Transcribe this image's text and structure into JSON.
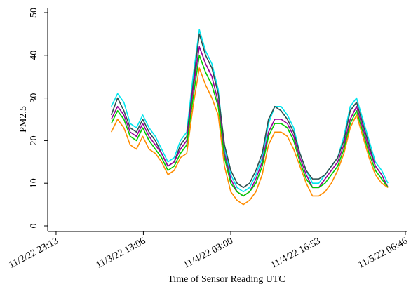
{
  "chart_data": {
    "type": "line",
    "y_label": "PM2.5",
    "x_label": "Time of Sensor Reading UTC",
    "xlim": [
      "2022-11-02T21:53",
      "2022-11-05T06:53"
    ],
    "xticks": [
      {
        "value": "2022-11-02T23:13",
        "label": "11/2/22 23:13"
      },
      {
        "value": "2022-11-03T13:06",
        "label": "11/3/22 13:06"
      },
      {
        "value": "2022-11-04T03:00",
        "label": "11/4/22 03:00"
      },
      {
        "value": "2022-11-04T16:53",
        "label": "11/4/22 16:53"
      },
      {
        "value": "2022-11-05T06:46",
        "label": "11/5/22 06:46"
      }
    ],
    "ylim": [
      0,
      50
    ],
    "yticks": [
      0,
      10,
      20,
      30,
      40,
      50
    ],
    "grid": false,
    "x": [
      "2022-11-03T08:00",
      "2022-11-03T09:00",
      "2022-11-03T10:00",
      "2022-11-03T11:00",
      "2022-11-03T12:00",
      "2022-11-03T13:00",
      "2022-11-03T14:00",
      "2022-11-03T15:00",
      "2022-11-03T16:00",
      "2022-11-03T17:00",
      "2022-11-03T18:00",
      "2022-11-03T19:00",
      "2022-11-03T20:00",
      "2022-11-03T21:00",
      "2022-11-03T22:00",
      "2022-11-03T23:00",
      "2022-11-04T00:00",
      "2022-11-04T01:00",
      "2022-11-04T02:00",
      "2022-11-04T03:00",
      "2022-11-04T04:00",
      "2022-11-04T05:00",
      "2022-11-04T06:00",
      "2022-11-04T07:00",
      "2022-11-04T08:00",
      "2022-11-04T09:00",
      "2022-11-04T10:00",
      "2022-11-04T11:00",
      "2022-11-04T12:00",
      "2022-11-04T13:00",
      "2022-11-04T14:00",
      "2022-11-04T15:00",
      "2022-11-04T16:00",
      "2022-11-04T17:00",
      "2022-11-04T18:00",
      "2022-11-04T19:00",
      "2022-11-04T20:00",
      "2022-11-04T21:00",
      "2022-11-04T22:00",
      "2022-11-04T23:00",
      "2022-11-05T00:00",
      "2022-11-05T01:00",
      "2022-11-05T02:00",
      "2022-11-05T03:00",
      "2022-11-05T04:00"
    ],
    "series": [
      {
        "color": "#00e5ee",
        "values": [
          28,
          31,
          29,
          24,
          23,
          26,
          23,
          21,
          18,
          15,
          16,
          20,
          22,
          35,
          46,
          41,
          38,
          32,
          18,
          12,
          9,
          8,
          9,
          12,
          16,
          24,
          28,
          28,
          26,
          23,
          17,
          13,
          10,
          10,
          12,
          14,
          16,
          21,
          28,
          30,
          25,
          20,
          15,
          13,
          10
        ]
      },
      {
        "color": "#2f4f4f",
        "values": [
          26,
          30,
          27,
          23,
          22,
          25,
          22,
          20,
          17,
          14,
          15,
          19,
          21,
          33,
          45,
          40,
          37,
          31,
          19,
          13,
          10,
          9,
          10,
          13,
          17,
          25,
          28,
          27,
          25,
          22,
          17,
          13,
          11,
          11,
          12,
          14,
          16,
          20,
          27,
          29,
          24,
          19,
          14,
          12,
          9
        ]
      },
      {
        "color": "#990099",
        "values": [
          25,
          28,
          26,
          22,
          21,
          24,
          21,
          19,
          17,
          14,
          15,
          18,
          20,
          32,
          42,
          38,
          35,
          29,
          17,
          11,
          8,
          7,
          8,
          11,
          15,
          22,
          25,
          25,
          24,
          21,
          16,
          12,
          9,
          9,
          11,
          13,
          15,
          19,
          25,
          28,
          23,
          18,
          14,
          12,
          9
        ]
      },
      {
        "color": "#00cc00",
        "values": [
          24,
          27,
          25,
          21,
          20,
          23,
          20,
          18,
          16,
          13,
          14,
          17,
          19,
          30,
          40,
          36,
          33,
          28,
          16,
          10,
          8,
          7,
          8,
          10,
          14,
          21,
          24,
          24,
          23,
          20,
          15,
          11,
          9,
          9,
          10,
          12,
          14,
          18,
          24,
          27,
          22,
          17,
          13,
          11,
          9
        ]
      },
      {
        "color": "#ff8c00",
        "values": [
          22,
          25,
          23,
          19,
          18,
          21,
          18,
          17,
          15,
          12,
          13,
          16,
          17,
          28,
          37,
          33,
          30,
          26,
          14,
          8,
          6,
          5,
          6,
          8,
          12,
          19,
          22,
          22,
          21,
          18,
          14,
          10,
          7,
          7,
          8,
          10,
          13,
          17,
          23,
          26,
          21,
          16,
          12,
          10,
          9
        ]
      }
    ]
  }
}
